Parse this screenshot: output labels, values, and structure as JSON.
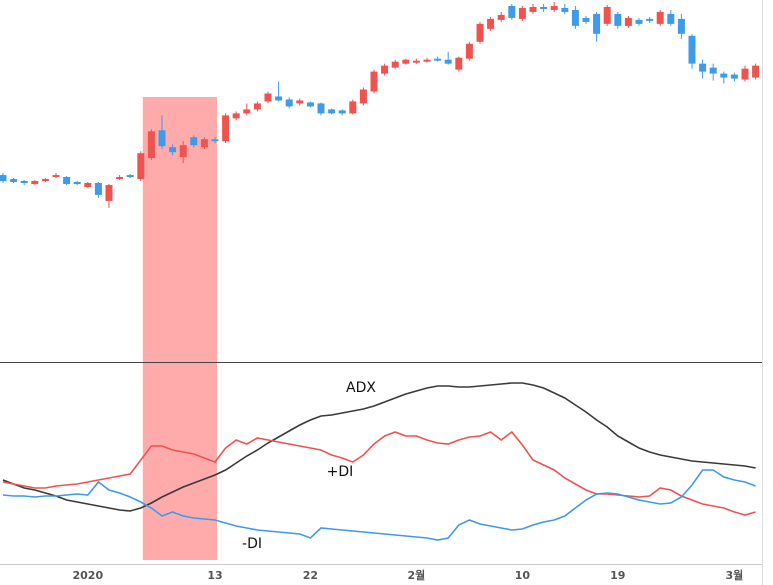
{
  "chart_data": [
    {
      "type": "candlestick",
      "categories": [
        null,
        null,
        null,
        null,
        null,
        null,
        null,
        null,
        "2020",
        null,
        null,
        null,
        null,
        null,
        null,
        null,
        null,
        null,
        null,
        null,
        "13",
        null,
        null,
        null,
        null,
        null,
        null,
        null,
        null,
        "22",
        null,
        null,
        null,
        null,
        null,
        null,
        null,
        null,
        null,
        "2월",
        null,
        null,
        null,
        null,
        null,
        null,
        null,
        null,
        null,
        "10",
        null,
        null,
        null,
        null,
        null,
        null,
        null,
        null,
        "19",
        null,
        null,
        null,
        null,
        null,
        null,
        null,
        null,
        null,
        null,
        "3월",
        null,
        null
      ],
      "open": [
        188,
        184,
        182,
        179,
        182,
        186,
        186,
        181,
        176,
        180,
        162,
        184,
        188,
        184,
        205,
        233,
        216,
        206,
        226,
        216,
        224,
        222,
        245,
        250,
        254,
        262,
        267,
        264,
        260,
        261,
        260,
        254,
        253,
        250,
        260,
        272,
        290,
        296,
        300,
        301,
        302,
        305,
        304,
        294,
        305,
        322,
        335,
        344,
        358,
        345,
        352,
        357,
        354,
        356,
        354,
        346,
        350,
        340,
        350,
        338,
        344,
        345,
        340,
        350,
        345,
        328,
        300,
        296,
        290,
        289,
        284,
        286
      ],
      "high": [
        190,
        185,
        183,
        183,
        185,
        190,
        187,
        182,
        181,
        181,
        179,
        188,
        189,
        212,
        234,
        248,
        219,
        222,
        228,
        226,
        226,
        250,
        252,
        260,
        262,
        272,
        282,
        266,
        265,
        262,
        261,
        255,
        254,
        264,
        276,
        294,
        300,
        304,
        305,
        305,
        306,
        307,
        312,
        307,
        322,
        342,
        347,
        352,
        360,
        358,
        360,
        360,
        362,
        360,
        358,
        348,
        352,
        359,
        352,
        348,
        346,
        347,
        354,
        354,
        350,
        330,
        304,
        300,
        292,
        291,
        298,
        300
      ],
      "low": [
        180,
        180,
        178,
        178,
        181,
        185,
        178,
        178,
        175,
        165,
        155,
        183,
        185,
        182,
        203,
        214,
        208,
        200,
        216,
        214,
        220,
        220,
        243,
        248,
        252,
        260,
        262,
        255,
        258,
        256,
        248,
        249,
        248,
        249,
        258,
        270,
        288,
        295,
        299,
        300,
        301,
        302,
        299,
        292,
        303,
        320,
        333,
        342,
        344,
        343,
        350,
        352,
        352,
        350,
        335,
        340,
        322,
        338,
        335,
        336,
        338,
        341,
        338,
        338,
        325,
        295,
        285,
        283,
        280,
        282,
        282,
        284
      ],
      "close": [
        182,
        181,
        180,
        182,
        184,
        188,
        179,
        179,
        180,
        168,
        178,
        186,
        186,
        210,
        232,
        217,
        211,
        218,
        218,
        224,
        222,
        248,
        250,
        254,
        260,
        270,
        263,
        257,
        263,
        257,
        250,
        250,
        250,
        262,
        274,
        292,
        298,
        302,
        304,
        303,
        304,
        303,
        300,
        306,
        320,
        340,
        345,
        349,
        346,
        356,
        357,
        355,
        358,
        352,
        338,
        342,
        330,
        357,
        338,
        346,
        340,
        343,
        352,
        340,
        330,
        300,
        292,
        290,
        286,
        285,
        295,
        298
      ],
      "up_color": "#ef5350",
      "down_color": "#3d9be9",
      "highlight": [
        13,
        20
      ],
      "highlight_color": "#ffabab",
      "ylim": [
        0,
        362
      ]
    },
    {
      "type": "line",
      "series": [
        {
          "name": "ADX",
          "color": "#3a3a3a",
          "values": [
            80,
            76,
            72,
            70,
            67,
            64,
            60,
            58,
            56,
            54,
            52,
            50,
            49,
            52,
            57,
            63,
            68,
            73,
            77,
            81,
            85,
            90,
            97,
            104,
            110,
            117,
            123,
            129,
            135,
            140,
            144,
            145,
            147,
            149,
            151,
            154,
            158,
            162,
            166,
            169,
            172,
            174,
            174,
            173,
            173,
            174,
            175,
            176,
            177,
            177,
            175,
            172,
            167,
            162,
            155,
            148,
            140,
            133,
            124,
            118,
            112,
            108,
            105,
            103,
            101,
            99,
            98,
            97,
            96,
            95,
            94,
            92
          ]
        },
        {
          "name": "+DI",
          "color": "#ef5350",
          "values": [
            78,
            76,
            74,
            72,
            72,
            74,
            75,
            76,
            78,
            80,
            82,
            84,
            86,
            100,
            114,
            114,
            110,
            108,
            106,
            102,
            98,
            112,
            120,
            116,
            122,
            120,
            118,
            116,
            114,
            112,
            110,
            105,
            102,
            98,
            105,
            116,
            124,
            128,
            124,
            124,
            120,
            117,
            116,
            120,
            123,
            124,
            128,
            120,
            128,
            115,
            100,
            95,
            90,
            82,
            76,
            70,
            66,
            66,
            65,
            64,
            63,
            64,
            72,
            70,
            64,
            60,
            56,
            54,
            52,
            48,
            45,
            48
          ]
        },
        {
          "name": "-DI",
          "color": "#3d9be9",
          "values": [
            65,
            64,
            64,
            63,
            64,
            64,
            65,
            66,
            65,
            78,
            70,
            67,
            63,
            58,
            52,
            44,
            48,
            44,
            42,
            41,
            40,
            37,
            34,
            32,
            30,
            29,
            28,
            27,
            26,
            22,
            32,
            31,
            30,
            29,
            28,
            27,
            26,
            25,
            24,
            23,
            22,
            20,
            22,
            35,
            40,
            36,
            34,
            32,
            30,
            31,
            35,
            38,
            40,
            44,
            52,
            60,
            66,
            67,
            66,
            63,
            60,
            58,
            56,
            57,
            63,
            75,
            90,
            90,
            83,
            80,
            78,
            74
          ]
        }
      ],
      "ylim": [
        0,
        198
      ]
    }
  ]
}
